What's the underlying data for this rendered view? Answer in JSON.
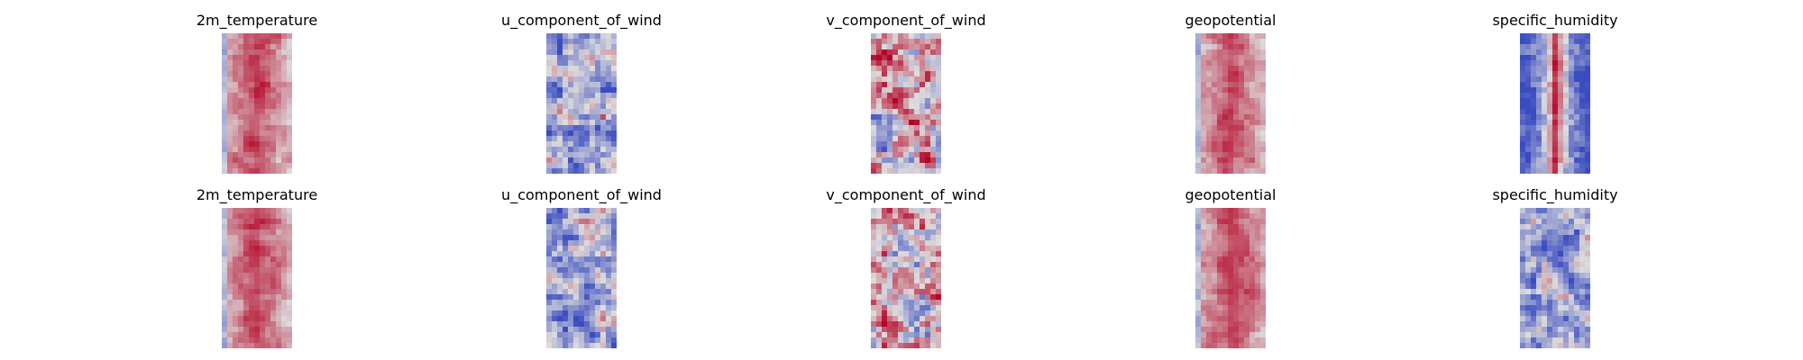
{
  "chart_data": [
    {
      "type": "heatmap",
      "title": "2m_temperature",
      "colormap": "coolwarm",
      "row": 1,
      "profile": "warm-core"
    },
    {
      "type": "heatmap",
      "title": "u_component_of_wind",
      "colormap": "coolwarm",
      "row": 1,
      "profile": "cool-mixed"
    },
    {
      "type": "heatmap",
      "title": "v_component_of_wind",
      "colormap": "coolwarm",
      "row": 1,
      "profile": "neutral-mixed"
    },
    {
      "type": "heatmap",
      "title": "geopotential",
      "colormap": "coolwarm",
      "row": 1,
      "profile": "warm-core"
    },
    {
      "type": "heatmap",
      "title": "specific_humidity",
      "colormap": "coolwarm",
      "row": 1,
      "profile": "cool-edges-warm-center"
    },
    {
      "type": "heatmap",
      "title": "2m_temperature",
      "colormap": "coolwarm",
      "row": 2,
      "profile": "warm-core"
    },
    {
      "type": "heatmap",
      "title": "u_component_of_wind",
      "colormap": "coolwarm",
      "row": 2,
      "profile": "cool-mixed"
    },
    {
      "type": "heatmap",
      "title": "v_component_of_wind",
      "colormap": "coolwarm",
      "row": 2,
      "profile": "neutral-mixed"
    },
    {
      "type": "heatmap",
      "title": "geopotential",
      "colormap": "coolwarm",
      "row": 2,
      "profile": "warm-core"
    },
    {
      "type": "heatmap",
      "title": "specific_humidity",
      "colormap": "coolwarm",
      "row": 2,
      "profile": "cool-mixed"
    }
  ],
  "colors": {
    "cool": "#3b4cc0",
    "neutral": "#dddddd",
    "warm": "#b40426"
  }
}
